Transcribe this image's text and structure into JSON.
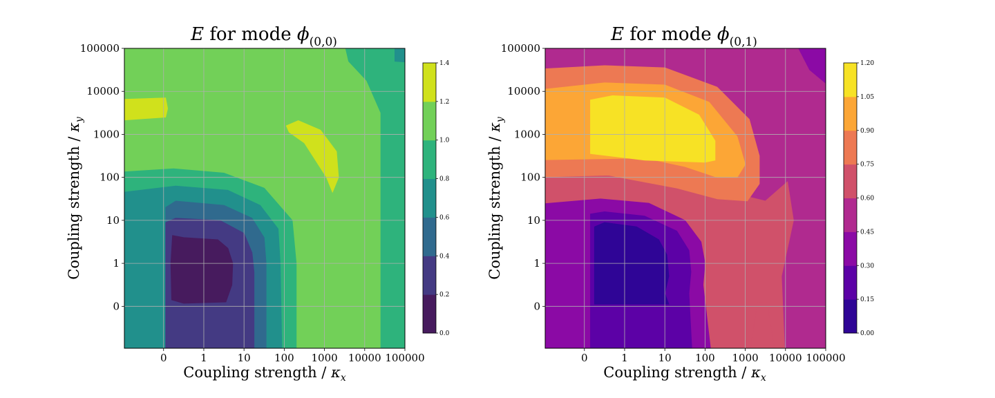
{
  "chart_data": [
    {
      "type": "contourf",
      "title": {
        "symbol": "E",
        "middle": "for mode",
        "mode": "ϕ",
        "subscript": "(0,0)"
      },
      "xlabel": {
        "text": "Coupling strength /",
        "symbol": "κ",
        "subscript": "x"
      },
      "ylabel": {
        "text": "Coupling strength /",
        "symbol": "κ",
        "subscript": "y"
      },
      "x_ticks": [
        "0",
        "1",
        "10",
        "100",
        "1000",
        "10000",
        "100000"
      ],
      "y_ticks": [
        "0",
        "1",
        "10",
        "100",
        "1000",
        "10000",
        "100000"
      ],
      "grid": true,
      "colormap": "viridis",
      "colorbar": {
        "ticks": [
          "0.0",
          "0.2",
          "0.4",
          "0.6",
          "0.8",
          "1.0",
          "1.2",
          "1.4"
        ],
        "colors": [
          "#471b5e",
          "#443a83",
          "#306a8e",
          "#21908c",
          "#2eb37c",
          "#72d058",
          "#d0e11c"
        ]
      },
      "regions": [
        {
          "level": 5,
          "points": [
            [
              -1,
              -1
            ],
            [
              5,
              -1
            ],
            [
              5,
              5
            ],
            [
              -1,
              5
            ]
          ]
        },
        {
          "level": 4,
          "points": [
            [
              4.4,
              -1
            ],
            [
              5,
              -1
            ],
            [
              5,
              5
            ],
            [
              3.4,
              5
            ],
            [
              3.6,
              4.7
            ],
            [
              4.05,
              4.25
            ],
            [
              4.4,
              3.5
            ],
            [
              4.4,
              1.0
            ]
          ]
        },
        {
          "level": 3,
          "points": [
            [
              4.75,
              4.7
            ],
            [
              5,
              4.65
            ],
            [
              5,
              5
            ],
            [
              4.75,
              5
            ]
          ]
        },
        {
          "level": 4,
          "points": [
            [
              -1,
              5
            ],
            [
              -0.85,
              5
            ],
            [
              -1,
              4.85
            ]
          ]
        },
        {
          "level": 4,
          "points": [
            [
              -1,
              2.1
            ],
            [
              -0.75,
              2.2
            ],
            [
              0.5,
              2.1
            ],
            [
              1.5,
              1.75
            ],
            [
              2.2,
              1.0
            ],
            [
              2.3,
              0
            ],
            [
              2.3,
              -1
            ],
            [
              -1,
              -1
            ]
          ]
        },
        {
          "level": 3,
          "points": [
            [
              -1,
              1.6
            ],
            [
              -0.7,
              1.8
            ],
            [
              0.6,
              1.7
            ],
            [
              1.4,
              1.35
            ],
            [
              1.85,
              0.8
            ],
            [
              1.9,
              0
            ],
            [
              1.95,
              -1
            ],
            [
              -1,
              -1
            ]
          ]
        },
        {
          "level": 2,
          "points": [
            [
              -0.95,
              1.3
            ],
            [
              -0.7,
              1.45
            ],
            [
              0.5,
              1.35
            ],
            [
              1.2,
              1.05
            ],
            [
              1.5,
              0.6
            ],
            [
              1.55,
              0
            ],
            [
              1.55,
              -1
            ],
            [
              -0.95,
              -1
            ]
          ]
        },
        {
          "level": 1,
          "points": [
            [
              -0.95,
              0.95
            ],
            [
              -0.7,
              1.05
            ],
            [
              0.4,
              1.0
            ],
            [
              1.0,
              0.7
            ],
            [
              1.2,
              0.25
            ],
            [
              1.25,
              -0.2
            ],
            [
              1.25,
              -1
            ],
            [
              -0.95,
              -1
            ]
          ]
        },
        {
          "level": 0,
          "points": [
            [
              -0.78,
              0.65
            ],
            [
              -0.5,
              0.6
            ],
            [
              0.35,
              0.55
            ],
            [
              0.6,
              0.35
            ],
            [
              0.72,
              0
            ],
            [
              0.7,
              -0.5
            ],
            [
              0.55,
              -0.9
            ],
            [
              -0.5,
              -0.93
            ],
            [
              -0.8,
              -0.85
            ],
            [
              -0.82,
              0
            ]
          ]
        },
        {
          "level": 6,
          "points": [
            [
              2.05,
              3.2
            ],
            [
              2.35,
              3.32
            ],
            [
              2.9,
              3.1
            ],
            [
              3.3,
              2.6
            ],
            [
              3.35,
              2.0
            ],
            [
              3.2,
              1.65
            ],
            [
              3.05,
              2.0
            ],
            [
              2.5,
              2.8
            ],
            [
              2.12,
              3.05
            ]
          ]
        },
        {
          "level": 6,
          "points": [
            [
              -1,
              3.8
            ],
            [
              -0.95,
              3.85
            ],
            [
              -0.9,
              3.6
            ],
            [
              -0.95,
              3.4
            ],
            [
              -1,
              3.3
            ]
          ]
        }
      ]
    },
    {
      "type": "contourf",
      "title": {
        "symbol": "E",
        "middle": "for mode",
        "mode": "ϕ",
        "subscript": "(0,1)"
      },
      "xlabel": {
        "text": "Coupling strength /",
        "symbol": "κ",
        "subscript": "x"
      },
      "ylabel": {
        "text": "Coupling strength /",
        "symbol": "κ",
        "subscript": "y"
      },
      "x_ticks": [
        "0",
        "1",
        "10",
        "100",
        "1000",
        "10000",
        "100000"
      ],
      "y_ticks": [
        "0",
        "1",
        "10",
        "100",
        "1000",
        "10000",
        "100000"
      ],
      "grid": true,
      "colormap": "plasma",
      "colorbar": {
        "ticks": [
          "0.00",
          "0.15",
          "0.30",
          "0.45",
          "0.60",
          "0.75",
          "0.90",
          "1.05",
          "1.20"
        ],
        "colors": [
          "#2f0596",
          "#5c01a6",
          "#8b0aa5",
          "#b02a8f",
          "#d0516a",
          "#ed7953",
          "#fca636",
          "#f7e225"
        ]
      },
      "regions": [
        {
          "level": 3,
          "points": [
            [
              -1,
              -1
            ],
            [
              5,
              -1
            ],
            [
              5,
              5
            ],
            [
              -1,
              5
            ]
          ]
        },
        {
          "level": 4,
          "points": [
            [
              -1,
              3.7
            ],
            [
              -0.5,
              3.85
            ],
            [
              0.8,
              3.6
            ],
            [
              1.9,
              3.0
            ],
            [
              2.6,
              2.3
            ],
            [
              2.85,
              1.6
            ],
            [
              3.5,
              1.45
            ],
            [
              4.05,
              1.9
            ],
            [
              4.2,
              1.0
            ],
            [
              3.9,
              -0.3
            ],
            [
              4.0,
              -1
            ],
            [
              -1,
              -1
            ]
          ]
        },
        {
          "level": 5,
          "points": [
            [
              -1,
              4.5
            ],
            [
              -0.5,
              4.6
            ],
            [
              1.0,
              4.55
            ],
            [
              2.3,
              4.1
            ],
            [
              3.1,
              3.35
            ],
            [
              3.35,
              2.5
            ],
            [
              3.35,
              1.85
            ],
            [
              3.05,
              1.45
            ],
            [
              2.3,
              1.5
            ],
            [
              1.3,
              1.75
            ],
            [
              -0.4,
              2.05
            ],
            [
              -1,
              2.0
            ]
          ]
        },
        {
          "level": 6,
          "points": [
            [
              -1,
              4.0
            ],
            [
              -0.5,
              4.2
            ],
            [
              1.0,
              4.15
            ],
            [
              2.1,
              3.75
            ],
            [
              2.8,
              2.95
            ],
            [
              3.0,
              2.3
            ],
            [
              2.8,
              2.0
            ],
            [
              2.3,
              2.0
            ],
            [
              1.5,
              2.25
            ],
            [
              0.5,
              2.45
            ],
            [
              -1,
              2.4
            ]
          ]
        },
        {
          "level": 7,
          "points": [
            [
              -0.85,
              3.8
            ],
            [
              -0.3,
              3.9
            ],
            [
              1.0,
              3.85
            ],
            [
              1.85,
              3.45
            ],
            [
              2.25,
              2.85
            ],
            [
              2.25,
              2.4
            ],
            [
              2.0,
              2.35
            ],
            [
              0.5,
              2.4
            ],
            [
              -0.85,
              2.55
            ]
          ]
        },
        {
          "level": 4,
          "points": [
            [
              3.3,
              -0.9
            ],
            [
              3.55,
              -0.92
            ],
            [
              3.8,
              -1
            ],
            [
              3.05,
              -1
            ]
          ]
        },
        {
          "level": 4,
          "points": [
            [
              -1,
              5
            ],
            [
              -0.9,
              5
            ],
            [
              -1,
              4.9
            ]
          ]
        },
        {
          "level": 2,
          "points": [
            [
              4.05,
              5
            ],
            [
              5,
              5
            ],
            [
              5,
              3.8
            ],
            [
              4.6,
              4.5
            ]
          ]
        },
        {
          "level": 1,
          "points": [
            [
              4.8,
              5
            ],
            [
              5,
              5
            ],
            [
              5,
              4.8
            ]
          ]
        },
        {
          "level": 2,
          "points": [
            [
              -1,
              1.35
            ],
            [
              -0.6,
              1.5
            ],
            [
              0.6,
              1.4
            ],
            [
              1.5,
              1.0
            ],
            [
              1.9,
              0.5
            ],
            [
              2.0,
              0
            ],
            [
              1.95,
              -0.5
            ],
            [
              2.2,
              -1
            ],
            [
              -1,
              -1
            ]
          ]
        },
        {
          "level": 1,
          "points": [
            [
              -0.85,
              1.15
            ],
            [
              -0.5,
              1.2
            ],
            [
              0.5,
              1.1
            ],
            [
              1.3,
              0.75
            ],
            [
              1.6,
              0.3
            ],
            [
              1.65,
              -0.2
            ],
            [
              1.6,
              -0.7
            ],
            [
              1.7,
              -1
            ],
            [
              -0.85,
              -1
            ]
          ]
        },
        {
          "level": 0,
          "points": [
            [
              -0.75,
              0.85
            ],
            [
              -0.5,
              0.95
            ],
            [
              0.3,
              0.85
            ],
            [
              0.85,
              0.55
            ],
            [
              1.05,
              0.2
            ],
            [
              1.1,
              -0.3
            ],
            [
              1.0,
              -0.7
            ],
            [
              1.1,
              -0.95
            ],
            [
              -0.75,
              -0.95
            ]
          ]
        }
      ]
    }
  ]
}
